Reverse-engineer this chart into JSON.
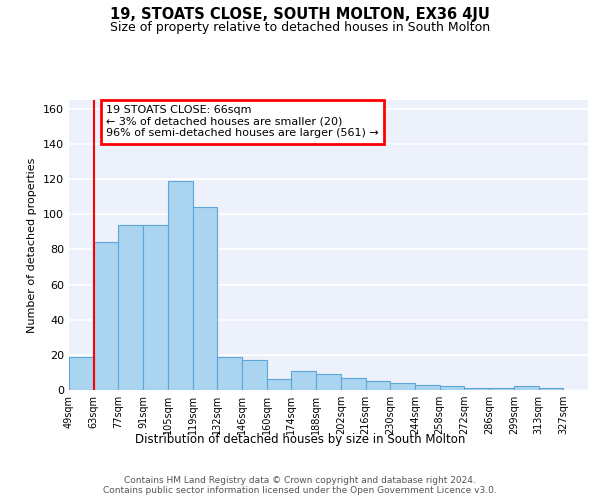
{
  "title": "19, STOATS CLOSE, SOUTH MOLTON, EX36 4JU",
  "subtitle": "Size of property relative to detached houses in South Molton",
  "xlabel": "Distribution of detached houses by size in South Molton",
  "ylabel": "Number of detached properties",
  "bin_labels": [
    "49sqm",
    "63sqm",
    "77sqm",
    "91sqm",
    "105sqm",
    "119sqm",
    "132sqm",
    "146sqm",
    "160sqm",
    "174sqm",
    "188sqm",
    "202sqm",
    "216sqm",
    "230sqm",
    "244sqm",
    "258sqm",
    "272sqm",
    "286sqm",
    "299sqm",
    "313sqm",
    "327sqm"
  ],
  "bar_heights": [
    19,
    84,
    94,
    94,
    119,
    104,
    19,
    17,
    6,
    11,
    9,
    7,
    5,
    4,
    3,
    2,
    1,
    1,
    2,
    1,
    0
  ],
  "bar_color": "#aad4f0",
  "bar_edge_color": "#5ba8d8",
  "red_line_x": 1,
  "annotation_text": "19 STOATS CLOSE: 66sqm\n← 3% of detached houses are smaller (20)\n96% of semi-detached houses are larger (561) →",
  "annotation_box_color": "white",
  "annotation_box_edge_color": "red",
  "ylim": [
    0,
    165
  ],
  "yticks": [
    0,
    20,
    40,
    60,
    80,
    100,
    120,
    140,
    160
  ],
  "footer_line1": "Contains HM Land Registry data © Crown copyright and database right 2024.",
  "footer_line2": "Contains public sector information licensed under the Open Government Licence v3.0.",
  "background_color": "#edf1fb",
  "grid_color": "white",
  "fig_bg_color": "white"
}
